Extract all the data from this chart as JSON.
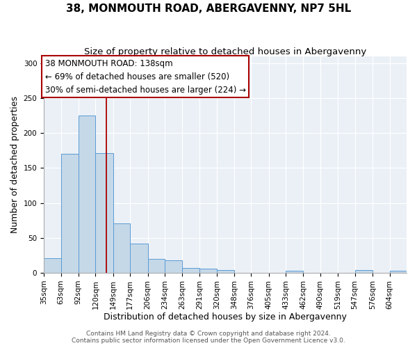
{
  "title": "38, MONMOUTH ROAD, ABERGAVENNY, NP7 5HL",
  "subtitle": "Size of property relative to detached houses in Abergavenny",
  "xlabel": "Distribution of detached houses by size in Abergavenny",
  "ylabel": "Number of detached properties",
  "footer_line1": "Contains HM Land Registry data © Crown copyright and database right 2024.",
  "footer_line2": "Contains public sector information licensed under the Open Government Licence v3.0.",
  "bin_labels": [
    "35sqm",
    "63sqm",
    "92sqm",
    "120sqm",
    "149sqm",
    "177sqm",
    "206sqm",
    "234sqm",
    "263sqm",
    "291sqm",
    "320sqm",
    "348sqm",
    "376sqm",
    "405sqm",
    "433sqm",
    "462sqm",
    "490sqm",
    "519sqm",
    "547sqm",
    "576sqm",
    "604sqm"
  ],
  "bar_values": [
    21,
    170,
    225,
    171,
    71,
    42,
    20,
    18,
    7,
    6,
    4,
    0,
    0,
    0,
    3,
    0,
    0,
    0,
    4,
    0,
    3
  ],
  "bar_color": "#c5d8e8",
  "bar_edge_color": "#5b9bd5",
  "vline_x": 138,
  "vline_color": "#aa0000",
  "annotation_line1": "38 MONMOUTH ROAD: 138sqm",
  "annotation_line2": "← 69% of detached houses are smaller (520)",
  "annotation_line3": "30% of semi-detached houses are larger (224) →",
  "box_edge_color": "#aa0000",
  "ylim": [
    0,
    310
  ],
  "yticks": [
    0,
    50,
    100,
    150,
    200,
    250,
    300
  ],
  "bin_edges": [
    35,
    63,
    92,
    120,
    149,
    177,
    206,
    234,
    263,
    291,
    320,
    348,
    376,
    405,
    433,
    462,
    490,
    519,
    547,
    576,
    604
  ],
  "title_fontsize": 11,
  "subtitle_fontsize": 9.5,
  "xlabel_fontsize": 9,
  "ylabel_fontsize": 9,
  "tick_fontsize": 7.5,
  "annotation_fontsize": 8.5,
  "footer_fontsize": 6.5,
  "background_color": "#eaf0f6"
}
